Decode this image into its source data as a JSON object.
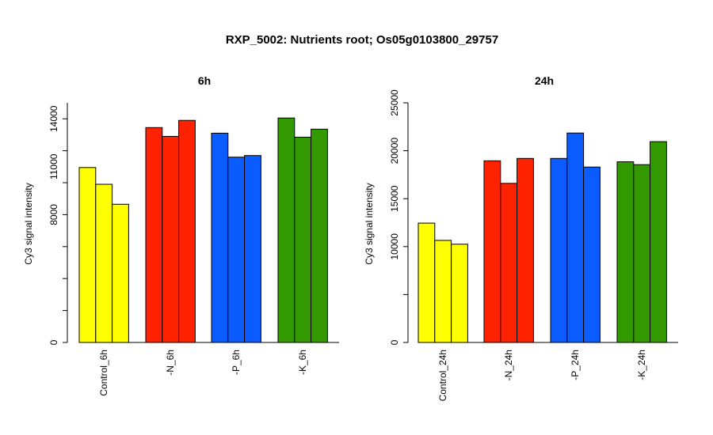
{
  "page_title": "RXP_5002: Nutrients root; Os05g0103800_29757",
  "colors": {
    "control": "#ffff00",
    "n": "#ff2200",
    "p": "#0a5cff",
    "k": "#339900",
    "stroke": "#000000"
  },
  "chart_data": [
    {
      "type": "bar",
      "title": "6h",
      "ylabel": "Cy3 signal intensity",
      "ylim": [
        0,
        15000
      ],
      "yticks": [
        0,
        8000,
        11000,
        14000
      ],
      "groups": [
        {
          "label": "Control_6h",
          "color_key": "control",
          "values": [
            10950,
            9900,
            8650
          ]
        },
        {
          "label": "-N_6h",
          "color_key": "n",
          "values": [
            13450,
            12900,
            13900
          ]
        },
        {
          "label": "-P_6h",
          "color_key": "p",
          "values": [
            13100,
            11600,
            11700
          ]
        },
        {
          "label": "-K_6h",
          "color_key": "k",
          "values": [
            14050,
            12850,
            13350
          ]
        }
      ]
    },
    {
      "type": "bar",
      "title": "24h",
      "ylabel": "Cy3 signal intensity",
      "ylim": [
        0,
        25000
      ],
      "yticks": [
        0,
        10000,
        15000,
        20000,
        25000
      ],
      "groups": [
        {
          "label": "Control_24h",
          "color_key": "control",
          "values": [
            12450,
            10650,
            10250
          ]
        },
        {
          "label": "-N_24h",
          "color_key": "n",
          "values": [
            18950,
            16600,
            19200
          ]
        },
        {
          "label": "-P_24h",
          "color_key": "p",
          "values": [
            19200,
            21850,
            18300
          ]
        },
        {
          "label": "-K_24h",
          "color_key": "k",
          "values": [
            18850,
            18550,
            20950
          ]
        }
      ]
    }
  ]
}
